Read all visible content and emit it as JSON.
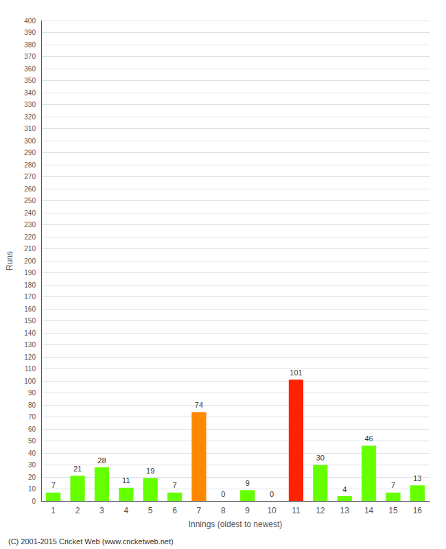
{
  "chart_data": {
    "type": "bar",
    "xlabel": "Innings (oldest to newest)",
    "ylabel": "Runs",
    "categories": [
      "1",
      "2",
      "3",
      "4",
      "5",
      "6",
      "7",
      "8",
      "9",
      "10",
      "11",
      "12",
      "13",
      "14",
      "15",
      "16"
    ],
    "values": [
      7,
      21,
      28,
      11,
      19,
      7,
      74,
      0,
      9,
      0,
      101,
      30,
      4,
      46,
      7,
      13
    ],
    "colors": [
      "#66ff00",
      "#66ff00",
      "#66ff00",
      "#66ff00",
      "#66ff00",
      "#66ff00",
      "#ff8800",
      "#66ff00",
      "#66ff00",
      "#66ff00",
      "#ff2200",
      "#66ff00",
      "#66ff00",
      "#66ff00",
      "#66ff00",
      "#66ff00"
    ],
    "ylim": [
      0,
      400
    ],
    "yticks": [
      0,
      10,
      20,
      30,
      40,
      50,
      60,
      70,
      80,
      90,
      100,
      110,
      120,
      130,
      140,
      150,
      160,
      170,
      180,
      190,
      200,
      210,
      220,
      230,
      240,
      250,
      260,
      270,
      280,
      290,
      300,
      310,
      320,
      330,
      340,
      350,
      360,
      370,
      380,
      390,
      400
    ],
    "grid": true,
    "data_labels": true,
    "annotations": [
      "(C) 2001-2015 Cricket Web (www.cricketweb.net)"
    ]
  }
}
